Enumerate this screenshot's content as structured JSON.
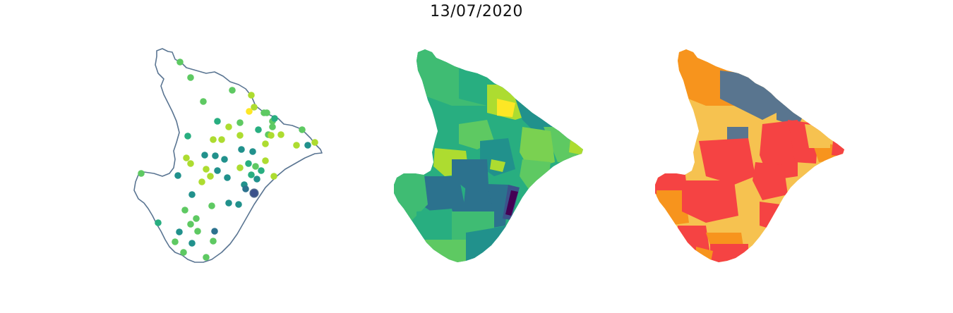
{
  "figure": {
    "title": "13/07/2020"
  },
  "colors": {
    "outline": "#5a7592",
    "viridis": [
      "#440154",
      "#3b528b",
      "#2c728e",
      "#21918c",
      "#28ae80",
      "#5ec962",
      "#addc30",
      "#fde725"
    ],
    "categorical": {
      "orange": "#f7941d",
      "slate_blue": "#59758f",
      "yellow": "#f6c250",
      "red": "#f54343"
    }
  },
  "panels": [
    {
      "kind": "point-map",
      "style": "outline-with-colored-points"
    },
    {
      "kind": "choropleth",
      "palette": "viridis"
    },
    {
      "kind": "choropleth",
      "palette": "categorical-4"
    }
  ]
}
